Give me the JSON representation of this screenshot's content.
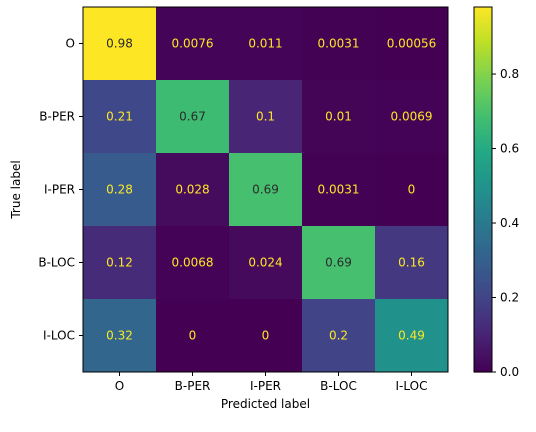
{
  "chart_data": {
    "type": "heatmap",
    "title": "",
    "xlabel": "Predicted label",
    "ylabel": "True label",
    "x_categories": [
      "O",
      "B-PER",
      "I-PER",
      "B-LOC",
      "I-LOC"
    ],
    "y_categories": [
      "O",
      "B-PER",
      "I-PER",
      "B-LOC",
      "I-LOC"
    ],
    "values": [
      [
        0.98,
        0.0076,
        0.011,
        0.0031,
        0.00056
      ],
      [
        0.21,
        0.67,
        0.1,
        0.01,
        0.0069
      ],
      [
        0.28,
        0.028,
        0.69,
        0.0031,
        0
      ],
      [
        0.12,
        0.0068,
        0.024,
        0.69,
        0.16
      ],
      [
        0.32,
        0,
        0,
        0.2,
        0.49
      ]
    ],
    "cell_labels": [
      [
        "0.98",
        "0.0076",
        "0.011",
        "0.0031",
        "0.00056"
      ],
      [
        "0.21",
        "0.67",
        "0.1",
        "0.01",
        "0.0069"
      ],
      [
        "0.28",
        "0.028",
        "0.69",
        "0.0031",
        "0"
      ],
      [
        "0.12",
        "0.0068",
        "0.024",
        "0.69",
        "0.16"
      ],
      [
        "0.32",
        "0",
        "0",
        "0.2",
        "0.49"
      ]
    ],
    "colormap": "viridis",
    "vmin": 0,
    "vmax": 0.98,
    "colorbar": {
      "ticks": [
        0.0,
        0.2,
        0.4,
        0.6,
        0.8
      ],
      "tick_labels": [
        "0.0",
        "0.2",
        "0.4",
        "0.6",
        "0.8"
      ],
      "placement": "right"
    },
    "text_colors": {
      "on_dark": "#fde725",
      "on_light": "#2b2b2b"
    }
  }
}
